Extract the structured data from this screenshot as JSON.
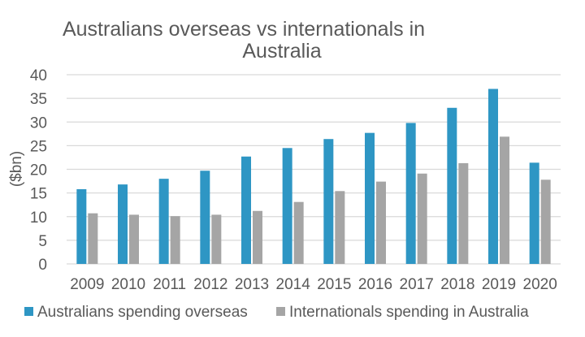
{
  "chart_data": {
    "type": "bar",
    "title_lines": [
      "Australians overseas vs internationals in",
      "Australia"
    ],
    "xlabel": "",
    "ylabel": "($bn)",
    "ylim": [
      0,
      40
    ],
    "yticks": [
      "0",
      "5",
      "10",
      "15",
      "20",
      "25",
      "30",
      "35",
      "40"
    ],
    "categories": [
      "2009",
      "2010",
      "2011",
      "2012",
      "2013",
      "2014",
      "2015",
      "2016",
      "2017",
      "2018",
      "2019",
      "2020"
    ],
    "series": [
      {
        "name": "Australians spending overseas",
        "color": "#2e96c4",
        "values": [
          15.8,
          16.8,
          18.0,
          19.7,
          22.7,
          24.5,
          26.4,
          27.7,
          29.8,
          33.0,
          37.0,
          21.4
        ]
      },
      {
        "name": "Internationals spending in Australia",
        "color": "#a5a5a5",
        "values": [
          10.7,
          10.4,
          10.1,
          10.4,
          11.2,
          13.1,
          15.4,
          17.4,
          19.1,
          21.3,
          26.9,
          17.8
        ]
      }
    ],
    "grid": true,
    "legend_position": "bottom"
  }
}
